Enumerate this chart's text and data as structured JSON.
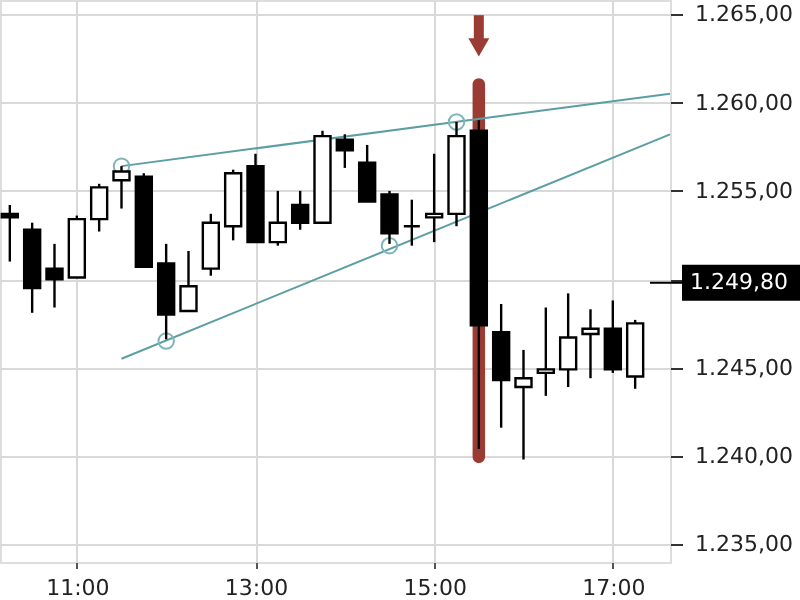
{
  "chart_data": {
    "type": "candlestick",
    "x": [
      10.25,
      10.5,
      10.75,
      11,
      11.25,
      11.5,
      11.75,
      12,
      12.25,
      12.5,
      12.75,
      13,
      13.25,
      13.5,
      13.75,
      14,
      14.25,
      14.5,
      14.75,
      15,
      15.25,
      15.5,
      15.75,
      16,
      16.25,
      16.5,
      16.75,
      17,
      17.25
    ],
    "ohlc": [
      [
        1253.7,
        1254.2,
        1251.0,
        1253.5
      ],
      [
        1252.8,
        1253.2,
        1248.1,
        1249.5
      ],
      [
        1250.6,
        1252.0,
        1248.4,
        1250.0
      ],
      [
        1250.1,
        1253.6,
        1250.1,
        1253.4
      ],
      [
        1253.4,
        1255.4,
        1252.7,
        1255.2
      ],
      [
        1255.6,
        1256.4,
        1254.0,
        1256.1
      ],
      [
        1255.8,
        1256.0,
        1250.7,
        1250.7
      ],
      [
        1250.9,
        1252.0,
        1246.6,
        1248.0
      ],
      [
        1248.2,
        1251.6,
        1248.2,
        1249.6
      ],
      [
        1250.6,
        1253.7,
        1250.2,
        1253.2
      ],
      [
        1253.0,
        1256.2,
        1252.2,
        1256.0
      ],
      [
        1256.4,
        1257.1,
        1252.1,
        1252.1
      ],
      [
        1252.1,
        1255.0,
        1251.9,
        1253.2
      ],
      [
        1254.2,
        1255.0,
        1252.8,
        1253.2
      ],
      [
        1253.2,
        1258.4,
        1253.2,
        1258.1
      ],
      [
        1257.9,
        1258.2,
        1256.3,
        1257.3
      ],
      [
        1256.6,
        1257.6,
        1254.4,
        1254.4
      ],
      [
        1254.8,
        1255.0,
        1252.0,
        1252.6
      ],
      [
        1253.0,
        1254.5,
        1251.9,
        1253.0
      ],
      [
        1253.5,
        1257.1,
        1252.1,
        1253.7
      ],
      [
        1253.7,
        1258.9,
        1253.0,
        1258.1
      ],
      [
        1258.4,
        1259.0,
        1240.4,
        1247.4
      ],
      [
        1247.0,
        1248.6,
        1241.6,
        1244.3
      ],
      [
        1243.9,
        1246.0,
        1239.8,
        1244.4
      ],
      [
        1244.7,
        1248.4,
        1243.4,
        1244.9
      ],
      [
        1244.9,
        1249.2,
        1243.9,
        1246.7
      ],
      [
        1246.9,
        1248.3,
        1244.4,
        1247.2
      ],
      [
        1247.2,
        1248.8,
        1244.7,
        1244.9
      ],
      [
        1244.5,
        1247.7,
        1243.8,
        1247.5
      ]
    ],
    "color": "#000000",
    "series": [
      {
        "type": "line",
        "color": "#5b9ea3",
        "x": [
          11.5,
          17.64
        ],
        "values": [
          1256.4,
          1260.5
        ],
        "marker": "none"
      },
      {
        "type": "line",
        "color": "#5b9ea3",
        "x": [
          11.5,
          17.64
        ],
        "values": [
          1245.5,
          1258.2
        ],
        "marker": "none"
      },
      {
        "type": "scatter",
        "color": "#7fb5b9",
        "x": [
          11.5,
          12,
          14.5,
          15.25
        ],
        "values": [
          1256.4,
          1246.5,
          1251.9,
          1258.9
        ],
        "marker": "circle"
      }
    ],
    "bands": [
      {
        "axis": "x",
        "from": 15.43,
        "to": 15.57,
        "color": "#9b3c34"
      }
    ],
    "ref_lines": [
      {
        "axis": "y",
        "value": 1249.8,
        "label": "1.249,80",
        "color": "#000000"
      }
    ],
    "xlim": [
      10.14,
      17.64
    ],
    "xticks": [
      {
        "value": 11,
        "label": "11:00"
      },
      {
        "value": 13,
        "label": "13:00"
      },
      {
        "value": 15,
        "label": "15:00"
      },
      {
        "value": 17,
        "label": "17:00"
      }
    ],
    "ylim": [
      1234.0,
      1265.8
    ],
    "yticks": [
      {
        "value": 1235,
        "label": "1.235,00"
      },
      {
        "value": 1240,
        "label": "1.240,00"
      },
      {
        "value": 1245,
        "label": "1.245,00"
      },
      {
        "value": 1250,
        "label": null
      },
      {
        "value": 1255,
        "label": "1.255,00"
      },
      {
        "value": 1260,
        "label": "1.260,00"
      },
      {
        "value": 1265,
        "label": "1.265,00"
      }
    ],
    "grid": true
  }
}
